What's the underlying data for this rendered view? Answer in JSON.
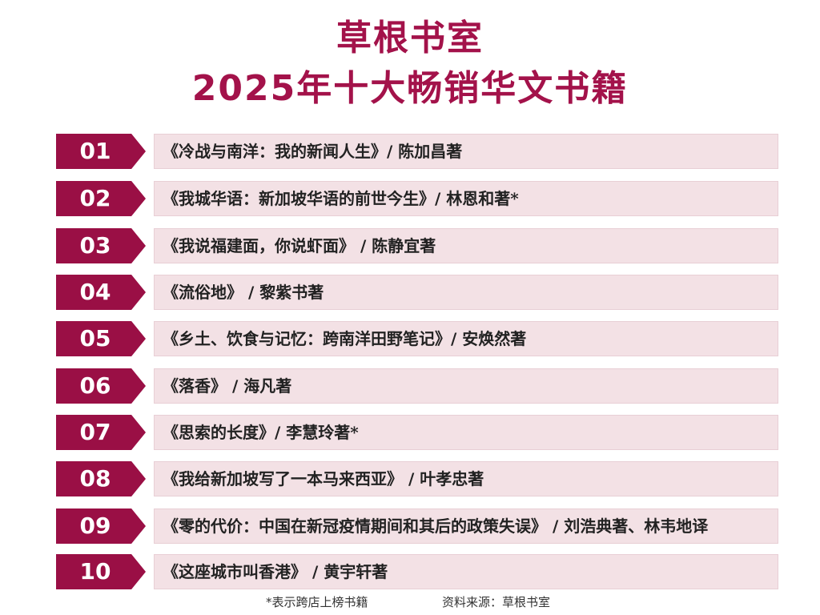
{
  "header": {
    "title_line1": "草根书室",
    "title_line2": "2025年十大畅销华文书籍"
  },
  "ranking": [
    {
      "rank": "01",
      "text": "《冷战与南洋：我的新闻人生》/ 陈加昌著"
    },
    {
      "rank": "02",
      "text": "《我城华语：新加坡华语的前世今生》/ 林恩和著*"
    },
    {
      "rank": "03",
      "text": "《我说福建面，你说虾面》 / 陈静宜著"
    },
    {
      "rank": "04",
      "text": "《流俗地》 / 黎紫书著"
    },
    {
      "rank": "05",
      "text": "《乡土、饮食与记忆：跨南洋田野笔记》/ 安焕然著"
    },
    {
      "rank": "06",
      "text": "《落香》 / 海凡著"
    },
    {
      "rank": "07",
      "text": "《思索的长度》/ 李慧玲著*"
    },
    {
      "rank": "08",
      "text": "《我给新加坡写了一本马来西亚》 / 叶孝忠著"
    },
    {
      "rank": "09",
      "text": "《零的代价：中国在新冠疫情期间和其后的政策失误》 / 刘浩典著、林韦地译"
    },
    {
      "rank": "10",
      "text": "《这座城市叫香港》 / 黄宇轩著"
    }
  ],
  "footer": {
    "note": "*表示跨店上榜书籍",
    "source": "资料来源：草根书室"
  },
  "colors": {
    "accent": "#a3124a",
    "badge": "#9a0f45",
    "bar": "#f3e1e5"
  }
}
